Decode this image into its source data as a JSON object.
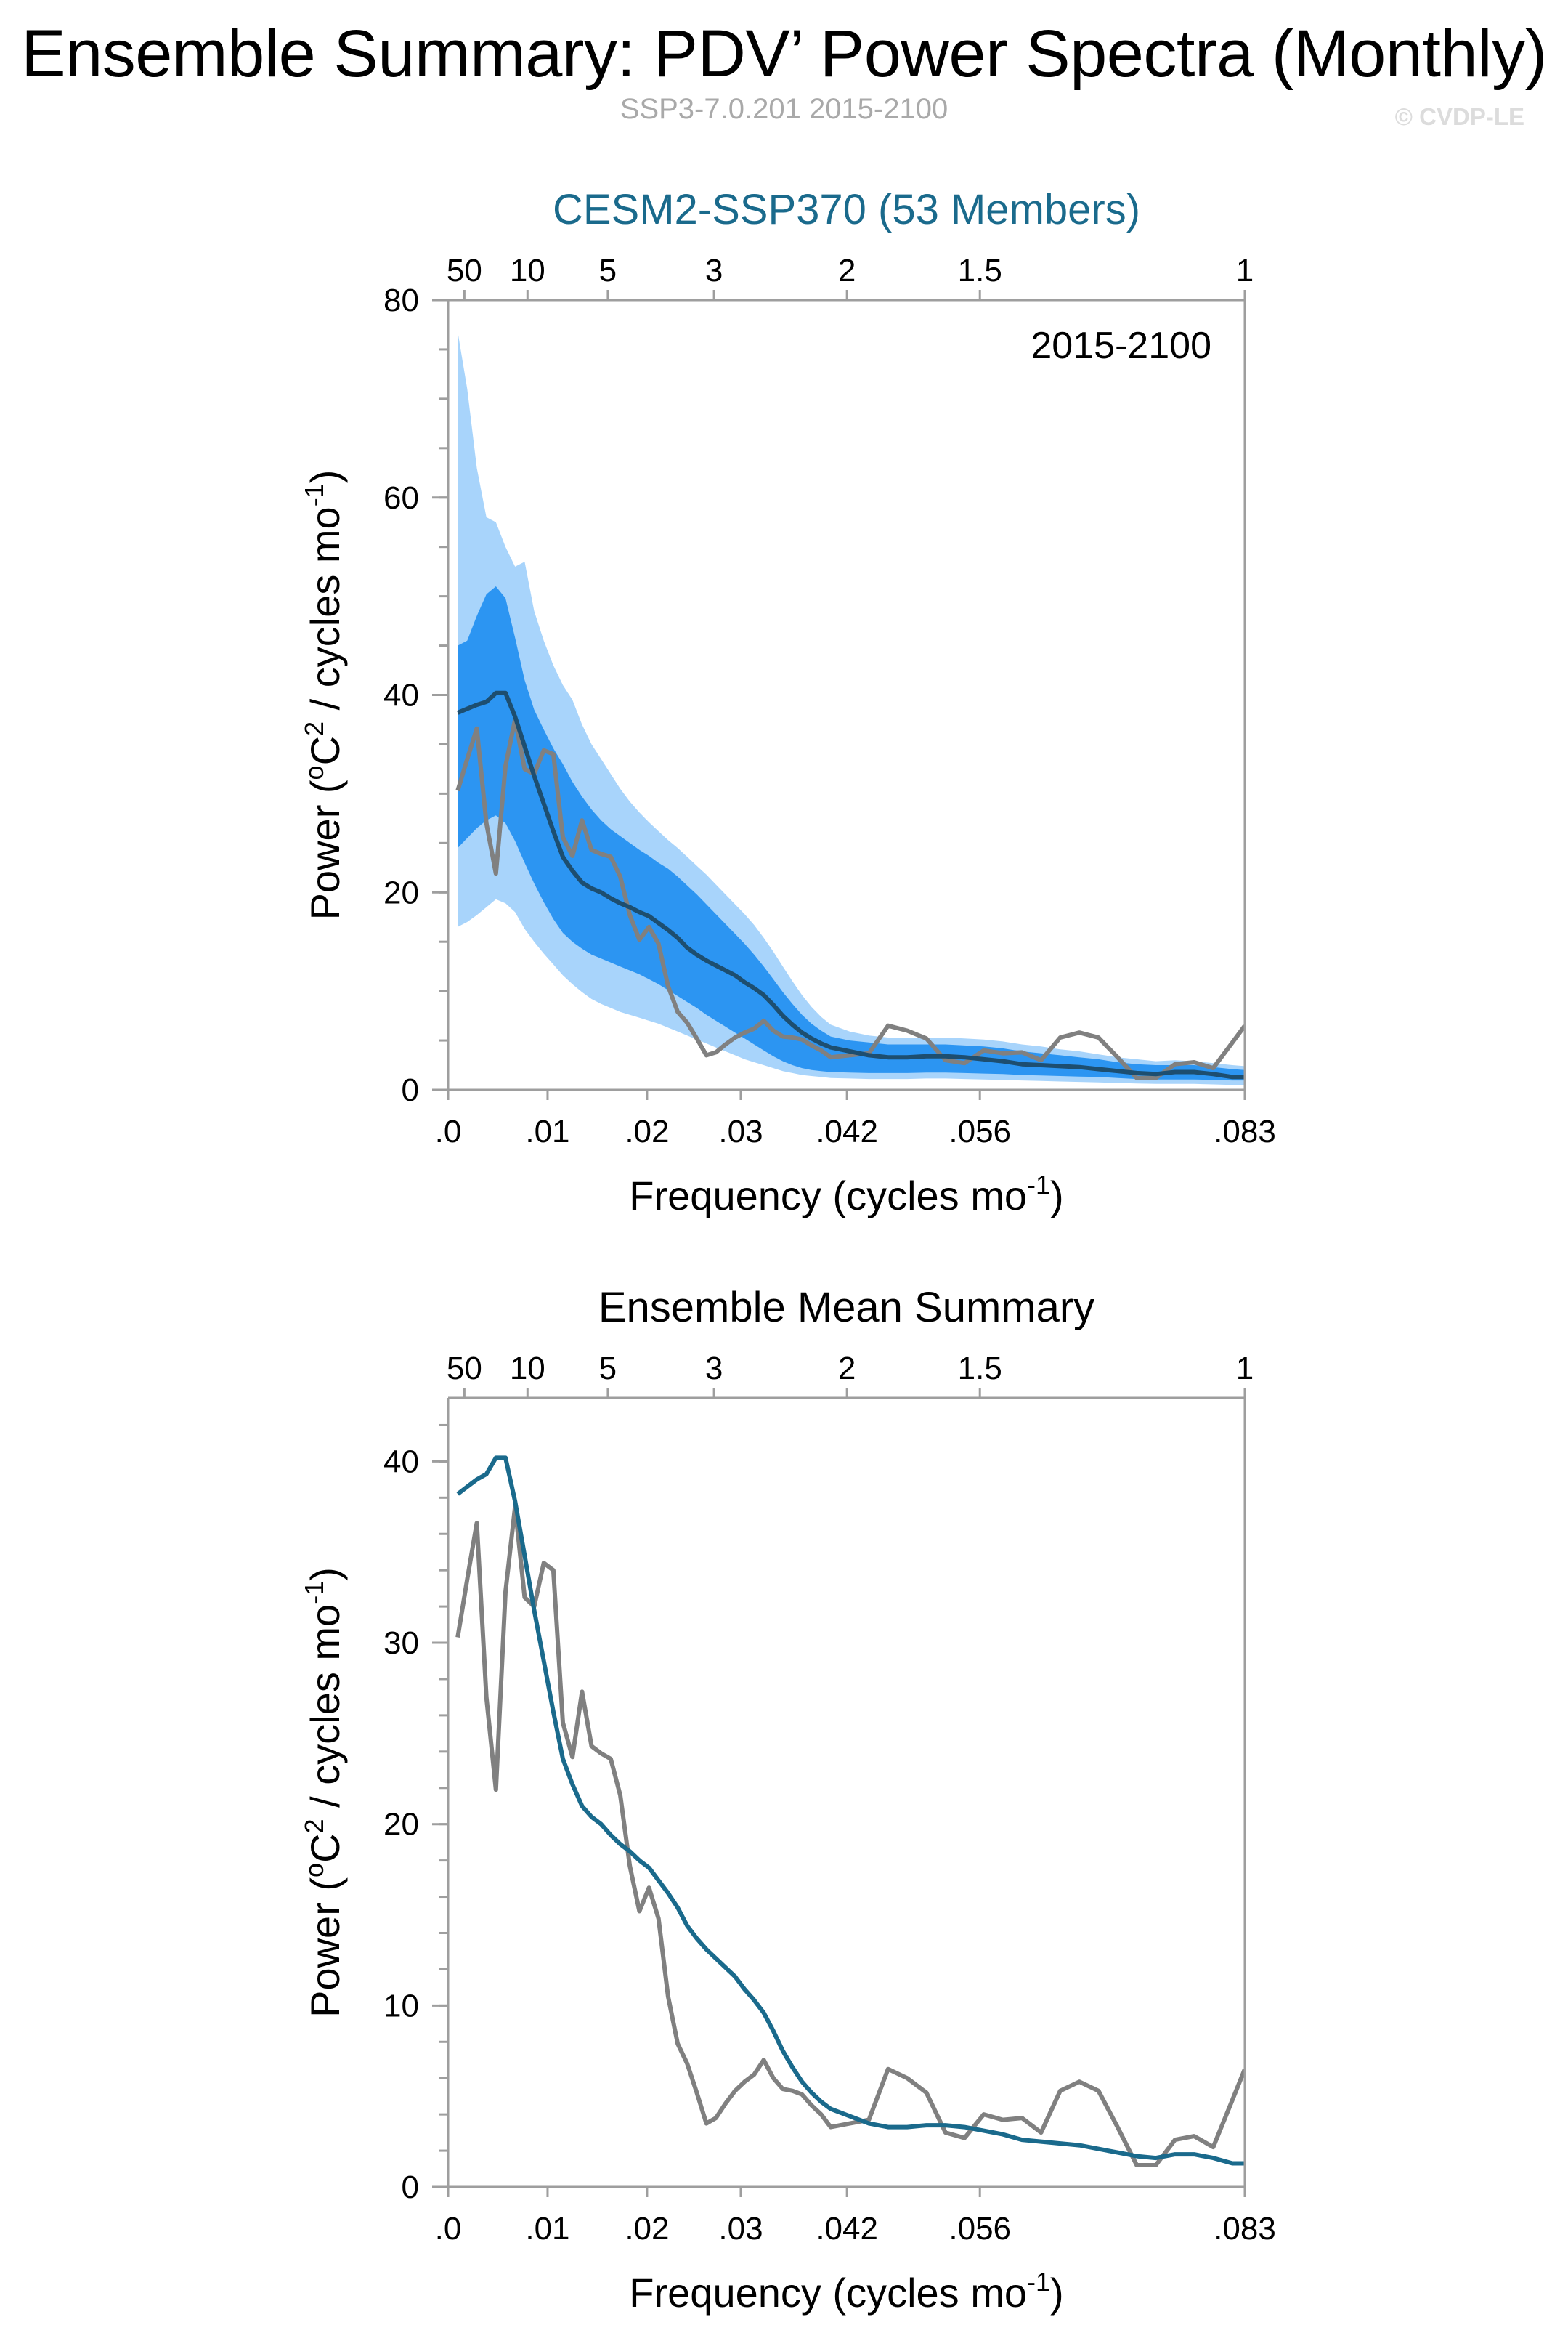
{
  "header": {
    "title": "Ensemble Summary: PDV’ Power Spectra (Monthly)",
    "subtitle": "SSP3-7.0.201 2015-2100",
    "copyright": "© CVDP-LE"
  },
  "colors": {
    "band_outer": "#a8d4fb",
    "band_inner": "#2c95f2",
    "ensemble_mean": "#1d4e70",
    "ensemble_mean_bottom": "#1a6a8c",
    "observations": "#808080",
    "title_accent": "#1a6a8c"
  },
  "chart_data": [
    {
      "type": "line",
      "title": "CESM2-SSP370 (53 Members)",
      "annotation": "2015-2100",
      "xlabel": "Frequency (cycles mo",
      "xlabel_sup": "-1",
      "xlabel_end": ")",
      "ylabel": "Power (",
      "ylabel_sup1": "o",
      "ylabel_mid": "C",
      "ylabel_sup2": "2",
      "ylabel_mid2": " / cycles mo",
      "ylabel_sup3": "-1",
      "ylabel_end": ")",
      "xlim": [
        0.0,
        0.0833
      ],
      "ylim": [
        0,
        80
      ],
      "x_ticks": [
        {
          "v": 0.0,
          "label": ".0"
        },
        {
          "v": 0.0104,
          "label": ".01"
        },
        {
          "v": 0.0208,
          "label": ".02"
        },
        {
          "v": 0.0306,
          "label": ".03"
        },
        {
          "v": 0.0417,
          "label": ".042"
        },
        {
          "v": 0.0556,
          "label": ".056"
        },
        {
          "v": 0.0833,
          "label": ".083"
        }
      ],
      "y_ticks": [
        {
          "v": 0,
          "label": "0"
        },
        {
          "v": 20,
          "label": "20"
        },
        {
          "v": 40,
          "label": "40"
        },
        {
          "v": 60,
          "label": "60"
        },
        {
          "v": 80,
          "label": "80"
        }
      ],
      "y_minor_step": 5,
      "top_ticks": [
        {
          "v": 0.0017,
          "label": "50"
        },
        {
          "v": 0.0083,
          "label": "10"
        },
        {
          "v": 0.0167,
          "label": "5"
        },
        {
          "v": 0.0278,
          "label": "3"
        },
        {
          "v": 0.0417,
          "label": "2"
        },
        {
          "v": 0.0556,
          "label": "1.5"
        },
        {
          "v": 0.0833,
          "label": "1"
        }
      ],
      "x": [
        0.001,
        0.002,
        0.003,
        0.004,
        0.005,
        0.006,
        0.007,
        0.008,
        0.009,
        0.01,
        0.011,
        0.012,
        0.013,
        0.014,
        0.015,
        0.016,
        0.017,
        0.018,
        0.019,
        0.02,
        0.021,
        0.022,
        0.023,
        0.024,
        0.025,
        0.026,
        0.027,
        0.028,
        0.029,
        0.03,
        0.031,
        0.032,
        0.033,
        0.034,
        0.035,
        0.036,
        0.037,
        0.038,
        0.039,
        0.04,
        0.042,
        0.044,
        0.046,
        0.048,
        0.05,
        0.052,
        0.054,
        0.056,
        0.058,
        0.06,
        0.062,
        0.064,
        0.066,
        0.068,
        0.07,
        0.072,
        0.074,
        0.076,
        0.078,
        0.08,
        0.082,
        0.0833
      ],
      "series": [
        {
          "name": "ensemble_mean",
          "values": [
            38.2,
            38.6,
            39.0,
            39.3,
            40.2,
            40.2,
            37.8,
            34.8,
            31.8,
            29.0,
            26.2,
            23.6,
            22.2,
            21.0,
            20.4,
            20.0,
            19.4,
            18.9,
            18.5,
            18.0,
            17.6,
            16.9,
            16.2,
            15.4,
            14.4,
            13.7,
            13.1,
            12.6,
            12.1,
            11.6,
            10.9,
            10.3,
            9.6,
            8.6,
            7.5,
            6.6,
            5.8,
            5.2,
            4.7,
            4.3,
            3.9,
            3.5,
            3.3,
            3.3,
            3.4,
            3.4,
            3.3,
            3.1,
            2.9,
            2.6,
            2.5,
            2.4,
            2.3,
            2.1,
            1.9,
            1.7,
            1.6,
            1.8,
            1.8,
            1.6,
            1.3,
            1.3
          ]
        },
        {
          "name": "observations",
          "values": [
            30.3,
            33.5,
            36.6,
            27.0,
            21.9,
            32.8,
            37.5,
            32.5,
            32.0,
            34.4,
            34.0,
            25.6,
            23.7,
            27.3,
            24.3,
            23.9,
            23.6,
            21.6,
            17.7,
            15.2,
            16.5,
            14.8,
            10.5,
            7.9,
            6.8,
            5.2,
            3.5,
            3.8,
            4.6,
            5.3,
            5.8,
            6.2,
            7.0,
            6.0,
            5.4,
            5.3,
            5.1,
            4.5,
            4.0,
            3.3,
            3.5,
            3.7,
            6.5,
            6.0,
            5.2,
            3.0,
            2.7,
            4.0,
            3.7,
            3.8,
            3.0,
            5.3,
            5.8,
            5.3,
            3.3,
            1.2,
            1.2,
            2.6,
            2.8,
            2.2,
            4.8,
            6.5
          ]
        },
        {
          "name": "ensemble_p10",
          "values": [
            16.5,
            17.0,
            17.7,
            18.5,
            19.3,
            18.9,
            18.0,
            16.3,
            15.0,
            13.8,
            12.7,
            11.6,
            10.7,
            9.9,
            9.2,
            8.7,
            8.3,
            7.9,
            7.6,
            7.3,
            7.0,
            6.7,
            6.3,
            5.9,
            5.5,
            5.1,
            4.7,
            4.3,
            3.9,
            3.5,
            3.1,
            2.8,
            2.5,
            2.2,
            1.9,
            1.7,
            1.5,
            1.4,
            1.3,
            1.2,
            1.15,
            1.1,
            1.1,
            1.1,
            1.15,
            1.15,
            1.1,
            1.05,
            1.0,
            0.95,
            0.9,
            0.85,
            0.8,
            0.75,
            0.7,
            0.65,
            0.6,
            0.6,
            0.6,
            0.55,
            0.5,
            0.5
          ]
        },
        {
          "name": "ensemble_p25",
          "values": [
            24.5,
            25.5,
            26.5,
            27.3,
            27.8,
            27.0,
            25.2,
            23.0,
            20.9,
            19.0,
            17.3,
            15.9,
            15.0,
            14.3,
            13.7,
            13.3,
            12.9,
            12.5,
            12.1,
            11.7,
            11.2,
            10.7,
            10.1,
            9.5,
            8.9,
            8.3,
            7.6,
            7.0,
            6.4,
            5.8,
            5.2,
            4.6,
            4.0,
            3.4,
            2.9,
            2.5,
            2.2,
            2.0,
            1.9,
            1.8,
            1.75,
            1.7,
            1.7,
            1.7,
            1.75,
            1.75,
            1.7,
            1.65,
            1.6,
            1.5,
            1.45,
            1.4,
            1.35,
            1.3,
            1.2,
            1.1,
            1.05,
            1.05,
            1.05,
            1.0,
            0.95,
            0.95
          ]
        },
        {
          "name": "ensemble_p75",
          "values": [
            45.0,
            45.5,
            48.0,
            50.2,
            51.0,
            49.8,
            45.8,
            41.5,
            38.5,
            36.5,
            34.6,
            33.0,
            31.2,
            29.7,
            28.4,
            27.3,
            26.4,
            25.7,
            25.0,
            24.3,
            23.7,
            23.0,
            22.4,
            21.6,
            20.7,
            19.8,
            18.8,
            17.8,
            16.8,
            15.8,
            14.8,
            13.7,
            12.5,
            11.2,
            9.9,
            8.7,
            7.6,
            6.7,
            6.0,
            5.4,
            5.0,
            4.8,
            4.6,
            4.6,
            4.6,
            4.6,
            4.5,
            4.4,
            4.2,
            3.9,
            3.7,
            3.5,
            3.3,
            3.1,
            2.8,
            2.6,
            2.5,
            2.5,
            2.5,
            2.3,
            2.1,
            2.0
          ]
        },
        {
          "name": "ensemble_p90",
          "values": [
            76.8,
            71.0,
            63.0,
            58.0,
            57.5,
            55.0,
            53.0,
            53.5,
            48.5,
            45.5,
            43.0,
            41.0,
            39.5,
            37.0,
            35.0,
            33.5,
            32.0,
            30.5,
            29.2,
            28.1,
            27.1,
            26.2,
            25.3,
            24.5,
            23.6,
            22.7,
            21.8,
            20.8,
            19.8,
            18.8,
            17.8,
            16.7,
            15.4,
            14.0,
            12.5,
            11.0,
            9.6,
            8.4,
            7.4,
            6.6,
            5.9,
            5.5,
            5.3,
            5.3,
            5.3,
            5.3,
            5.2,
            5.1,
            4.9,
            4.6,
            4.4,
            4.1,
            3.9,
            3.6,
            3.3,
            3.1,
            2.9,
            3.0,
            2.9,
            2.7,
            2.5,
            2.4
          ]
        }
      ]
    },
    {
      "type": "line",
      "title": "Ensemble Mean Summary",
      "xlabel": "Frequency (cycles mo",
      "xlabel_sup": "-1",
      "xlabel_end": ")",
      "ylabel": "Power (",
      "ylabel_sup1": "o",
      "ylabel_mid": "C",
      "ylabel_sup2": "2",
      "ylabel_mid2": " / cycles mo",
      "ylabel_sup3": "-1",
      "ylabel_end": ")",
      "xlim": [
        0.0,
        0.0833
      ],
      "ylim": [
        0,
        43.5
      ],
      "x_ticks": [
        {
          "v": 0.0,
          "label": ".0"
        },
        {
          "v": 0.0104,
          "label": ".01"
        },
        {
          "v": 0.0208,
          "label": ".02"
        },
        {
          "v": 0.0306,
          "label": ".03"
        },
        {
          "v": 0.0417,
          "label": ".042"
        },
        {
          "v": 0.0556,
          "label": ".056"
        },
        {
          "v": 0.0833,
          "label": ".083"
        }
      ],
      "y_ticks": [
        {
          "v": 0,
          "label": "0"
        },
        {
          "v": 10,
          "label": "10"
        },
        {
          "v": 20,
          "label": "20"
        },
        {
          "v": 30,
          "label": "30"
        },
        {
          "v": 40,
          "label": "40"
        }
      ],
      "y_minor_step": 2,
      "top_ticks": [
        {
          "v": 0.0017,
          "label": "50"
        },
        {
          "v": 0.0083,
          "label": "10"
        },
        {
          "v": 0.0167,
          "label": "5"
        },
        {
          "v": 0.0278,
          "label": "3"
        },
        {
          "v": 0.0417,
          "label": "2"
        },
        {
          "v": 0.0556,
          "label": "1.5"
        },
        {
          "v": 0.0833,
          "label": "1"
        }
      ],
      "x": [
        0.001,
        0.002,
        0.003,
        0.004,
        0.005,
        0.006,
        0.007,
        0.008,
        0.009,
        0.01,
        0.011,
        0.012,
        0.013,
        0.014,
        0.015,
        0.016,
        0.017,
        0.018,
        0.019,
        0.02,
        0.021,
        0.022,
        0.023,
        0.024,
        0.025,
        0.026,
        0.027,
        0.028,
        0.029,
        0.03,
        0.031,
        0.032,
        0.033,
        0.034,
        0.035,
        0.036,
        0.037,
        0.038,
        0.039,
        0.04,
        0.042,
        0.044,
        0.046,
        0.048,
        0.05,
        0.052,
        0.054,
        0.056,
        0.058,
        0.06,
        0.062,
        0.064,
        0.066,
        0.068,
        0.07,
        0.072,
        0.074,
        0.076,
        0.078,
        0.08,
        0.082,
        0.0833
      ],
      "series": [
        {
          "name": "ensemble_mean",
          "values": [
            38.2,
            38.6,
            39.0,
            39.3,
            40.2,
            40.2,
            37.8,
            34.8,
            31.8,
            29.0,
            26.2,
            23.6,
            22.2,
            21.0,
            20.4,
            20.0,
            19.4,
            18.9,
            18.5,
            18.0,
            17.6,
            16.9,
            16.2,
            15.4,
            14.4,
            13.7,
            13.1,
            12.6,
            12.1,
            11.6,
            10.9,
            10.3,
            9.6,
            8.6,
            7.5,
            6.6,
            5.8,
            5.2,
            4.7,
            4.3,
            3.9,
            3.5,
            3.3,
            3.3,
            3.4,
            3.4,
            3.3,
            3.1,
            2.9,
            2.6,
            2.5,
            2.4,
            2.3,
            2.1,
            1.9,
            1.7,
            1.6,
            1.8,
            1.8,
            1.6,
            1.3,
            1.3
          ]
        },
        {
          "name": "observations",
          "values": [
            30.3,
            33.5,
            36.6,
            27.0,
            21.9,
            32.8,
            37.5,
            32.5,
            32.0,
            34.4,
            34.0,
            25.6,
            23.7,
            27.3,
            24.3,
            23.9,
            23.6,
            21.6,
            17.7,
            15.2,
            16.5,
            14.8,
            10.5,
            7.9,
            6.8,
            5.2,
            3.5,
            3.8,
            4.6,
            5.3,
            5.8,
            6.2,
            7.0,
            6.0,
            5.4,
            5.3,
            5.1,
            4.5,
            4.0,
            3.3,
            3.5,
            3.7,
            6.5,
            6.0,
            5.2,
            3.0,
            2.7,
            4.0,
            3.7,
            3.8,
            3.0,
            5.3,
            5.8,
            5.3,
            3.3,
            1.2,
            1.2,
            2.6,
            2.8,
            2.2,
            4.8,
            6.5
          ]
        }
      ]
    }
  ]
}
